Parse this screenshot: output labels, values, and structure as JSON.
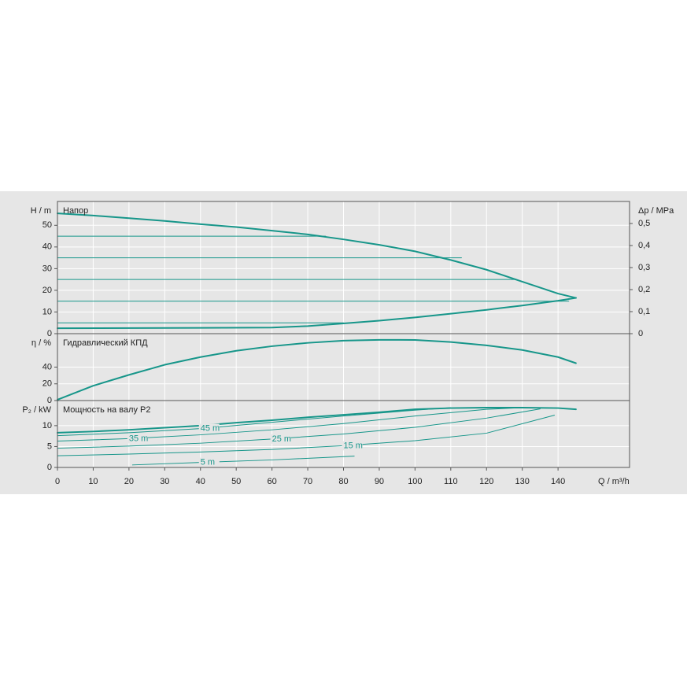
{
  "chart_data": [
    {
      "type": "line",
      "title": "Напор",
      "ylabel": "H / m",
      "y2label": "Δp / MPa",
      "xlim": [
        0,
        160
      ],
      "xticks": [
        0,
        10,
        20,
        30,
        40,
        50,
        60,
        70,
        80,
        90,
        100,
        110,
        120,
        130,
        140
      ],
      "ylim": [
        0,
        61
      ],
      "yticks": [
        0,
        10,
        20,
        30,
        40,
        50
      ],
      "y2lim": [
        0,
        0.6
      ],
      "y2ticks": [
        0,
        {
          "value": 0.1,
          "label": "0,1"
        },
        {
          "value": 0.2,
          "label": "0,2"
        },
        {
          "value": 0.3,
          "label": "0,3"
        },
        {
          "value": 0.4,
          "label": "0,4"
        },
        {
          "value": 0.5,
          "label": "0,5"
        }
      ],
      "grid": true,
      "series": [
        {
          "color": "#17968a",
          "x": [
            0,
            10,
            20,
            30,
            40,
            50,
            60,
            70,
            80,
            90,
            100,
            110,
            120,
            130,
            140,
            145
          ],
          "values": [
            55.5,
            54.5,
            53.3,
            52,
            50.5,
            49.2,
            47.5,
            45.8,
            43.5,
            41,
            38,
            34,
            29.5,
            24,
            18.5,
            16.5
          ]
        },
        {
          "color": "#17968a",
          "x": [
            0,
            60,
            70,
            80,
            90,
            100,
            110,
            120,
            130,
            140,
            145
          ],
          "values": [
            2.5,
            2.8,
            3.5,
            4.7,
            6,
            7.5,
            9.2,
            11,
            13,
            15.2,
            16.5
          ]
        },
        {
          "color": "#17968a",
          "x": [
            0,
            75
          ],
          "values": [
            45,
            45
          ]
        },
        {
          "color": "#17968a",
          "x": [
            0,
            113
          ],
          "values": [
            35,
            35
          ]
        },
        {
          "color": "#17968a",
          "x": [
            0,
            128
          ],
          "values": [
            25,
            25
          ]
        },
        {
          "color": "#17968a",
          "x": [
            0,
            143
          ],
          "values": [
            15,
            15
          ]
        },
        {
          "color": "#17968a",
          "x": [
            0,
            80
          ],
          "values": [
            5,
            5
          ]
        }
      ]
    },
    {
      "type": "line",
      "title": "Гидравлический КПД",
      "ylabel": "η / %",
      "xlim": [
        0,
        160
      ],
      "xticks": [
        0,
        10,
        20,
        30,
        40,
        50,
        60,
        70,
        80,
        90,
        100,
        110,
        120,
        130,
        140
      ],
      "ylim": [
        0,
        80
      ],
      "yticks": [
        0,
        20,
        40
      ],
      "grid": true,
      "series": [
        {
          "color": "#17968a",
          "x": [
            0,
            10,
            20,
            30,
            40,
            50,
            60,
            70,
            80,
            90,
            100,
            110,
            120,
            130,
            140,
            145
          ],
          "values": [
            1,
            17.7,
            30.7,
            42.8,
            52,
            59.5,
            65,
            69,
            71.6,
            72.6,
            72.5,
            70,
            66,
            60.5,
            52,
            44.7
          ]
        }
      ]
    },
    {
      "type": "line",
      "title": "Мощность на валу P2",
      "ylabel": "P₂ / kW",
      "xlabel": "Q / m³/h",
      "xlim": [
        0,
        160
      ],
      "xticks": [
        0,
        10,
        20,
        30,
        40,
        50,
        60,
        70,
        80,
        90,
        100,
        110,
        120,
        130,
        140
      ],
      "ylim": [
        0,
        16
      ],
      "yticks": [
        0,
        5,
        10
      ],
      "grid": true,
      "series": [
        {
          "color": "#17968a",
          "x": [
            0,
            10,
            20,
            30,
            40,
            50,
            60,
            70,
            80,
            90,
            100,
            110,
            120,
            130,
            140,
            145
          ],
          "values": [
            8.3,
            8.6,
            9,
            9.5,
            10,
            10.7,
            11.3,
            12,
            12.6,
            13.2,
            13.9,
            14.2,
            14.3,
            14.3,
            14.2,
            13.9
          ]
        },
        {
          "name": "45 m",
          "color": "#17968a",
          "x": [
            0,
            20,
            40,
            60,
            80,
            100,
            110
          ],
          "values": [
            7.6,
            8.3,
            9.3,
            10.8,
            12.3,
            13.7,
            14.3
          ]
        },
        {
          "name": "35 m",
          "color": "#17968a",
          "x": [
            0,
            20,
            40,
            60,
            80,
            100,
            120,
            130
          ],
          "values": [
            6.3,
            6.9,
            7.8,
            9,
            10.5,
            12.3,
            13.9,
            14.3
          ]
        },
        {
          "name": "25 m",
          "color": "#17968a",
          "x": [
            0,
            20,
            40,
            60,
            80,
            100,
            120,
            135
          ],
          "values": [
            4.6,
            5.1,
            5.8,
            6.8,
            8,
            9.6,
            11.8,
            14
          ]
        },
        {
          "name": "15 m",
          "color": "#17968a",
          "x": [
            0,
            20,
            40,
            60,
            80,
            100,
            120,
            139
          ],
          "values": [
            2.8,
            3.2,
            3.7,
            4.3,
            5.2,
            6.4,
            8.2,
            12.5
          ]
        },
        {
          "name": "5 m",
          "color": "#17968a",
          "x": [
            21,
            40,
            60,
            83
          ],
          "values": [
            0.6,
            1.2,
            1.8,
            2.7
          ]
        }
      ]
    }
  ]
}
